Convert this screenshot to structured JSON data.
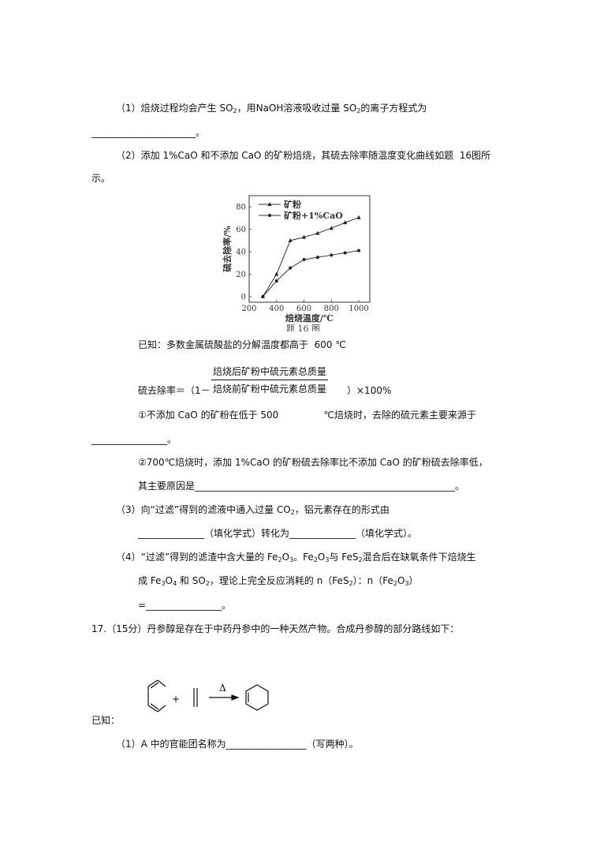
{
  "lines": {
    "q1": [
      "（1）焙烧过程均会产生 SO",
      {
        "sub": "2"
      },
      "，用NaOH溶液吸收过量 SO",
      {
        "sub": "2"
      },
      "的离子方程式为"
    ],
    "q1_blank": [
      "______________________。"
    ],
    "q2": [
      "（2）添加 1%CaO 和不添加 CaO 的矿粉焙烧，其硫去除率随温度变化曲线如题  16图所"
    ],
    "q2_cont": [
      "示。"
    ],
    "known": [
      "已知：多数金属硫酸盐的分解温度都高于  600 ℃"
    ],
    "formula_lhs": [
      "硫去除率＝（1－"
    ],
    "formula_rhs": [
      "）×100%"
    ],
    "sub1": [
      "①不添加 CaO 的矿粉在低于 500               ℃焙烧时，去除的硫元素主要来源于"
    ],
    "sub1_blank": [
      "________________。"
    ],
    "sub2": [
      "②700℃焙烧时，添加 1%CaO 的矿粉硫去除率比不添加 CaO 的矿粉硫去除率低，"
    ],
    "sub2_cont": [
      "其主要原因是_______________________________________________________。"
    ],
    "q3": [
      "（3）向“过滤”得到的滤液中通入过量 CO",
      {
        "sub": "2"
      },
      "，铝元素存在的形式由"
    ],
    "q3_cont": [
      "______________（填化学式）转化为______________（填化学式）。"
    ],
    "q4": [
      "（4）“过滤”得到的滤渣中含大量的 Fe",
      {
        "sub": "2"
      },
      "O",
      {
        "sub": "3"
      },
      "。Fe",
      {
        "sub": "2"
      },
      "O",
      {
        "sub": "3"
      },
      "与 FeS",
      {
        "sub": "2"
      },
      "混合后在缺氧条件下焙烧生"
    ],
    "q4_cont": [
      "成 Fe",
      {
        "sub": "3"
      },
      "O",
      {
        "sub": "4"
      },
      " 和 SO",
      {
        "sub": "2"
      },
      "，理论上完全反应消耗的 n（FeS",
      {
        "sub": "2"
      },
      "）：n（Fe",
      {
        "sub": "2"
      },
      "O",
      {
        "sub": "3"
      },
      "）"
    ],
    "q4_blank": [
      "=________________。"
    ],
    "q17": [
      "17.（15分）丹参醇是存在于中药丹参中的一种天然产物。合成丹参醇的部分路线如下："
    ],
    "q17_known": [
      "已知："
    ],
    "q17_1": [
      "（1）A 中的官能团名称为_________________（写两种）。"
    ]
  },
  "formula": {
    "numerator": "焙烧后矿粉中硫元素总质量",
    "denominator": "焙烧前矿粉中硫元素总质量"
  },
  "reaction": {
    "plus": "+",
    "condition": "Δ"
  },
  "chart_data": {
    "type": "line",
    "title": "",
    "caption": "题 16 图",
    "xlabel": "焙烧温度/℃",
    "ylabel": "硫去除率/%",
    "xlim": [
      200,
      1080
    ],
    "ylim": [
      -5,
      90
    ],
    "xticks": [
      200,
      400,
      600,
      800,
      1000
    ],
    "yticks": [
      0,
      20,
      40,
      60,
      80
    ],
    "legend_position": "top-left",
    "grid": false,
    "x": [
      300,
      400,
      500,
      600,
      700,
      800,
      900,
      1000
    ],
    "series": [
      {
        "name": "矿粉",
        "marker": "triangle",
        "values": [
          0,
          20,
          50,
          53,
          56.5,
          61,
          66,
          70.5
        ]
      },
      {
        "name": "矿粉+1%CaO",
        "marker": "circle",
        "values": [
          0,
          14,
          25.5,
          33,
          35,
          37,
          39,
          41
        ]
      }
    ]
  }
}
